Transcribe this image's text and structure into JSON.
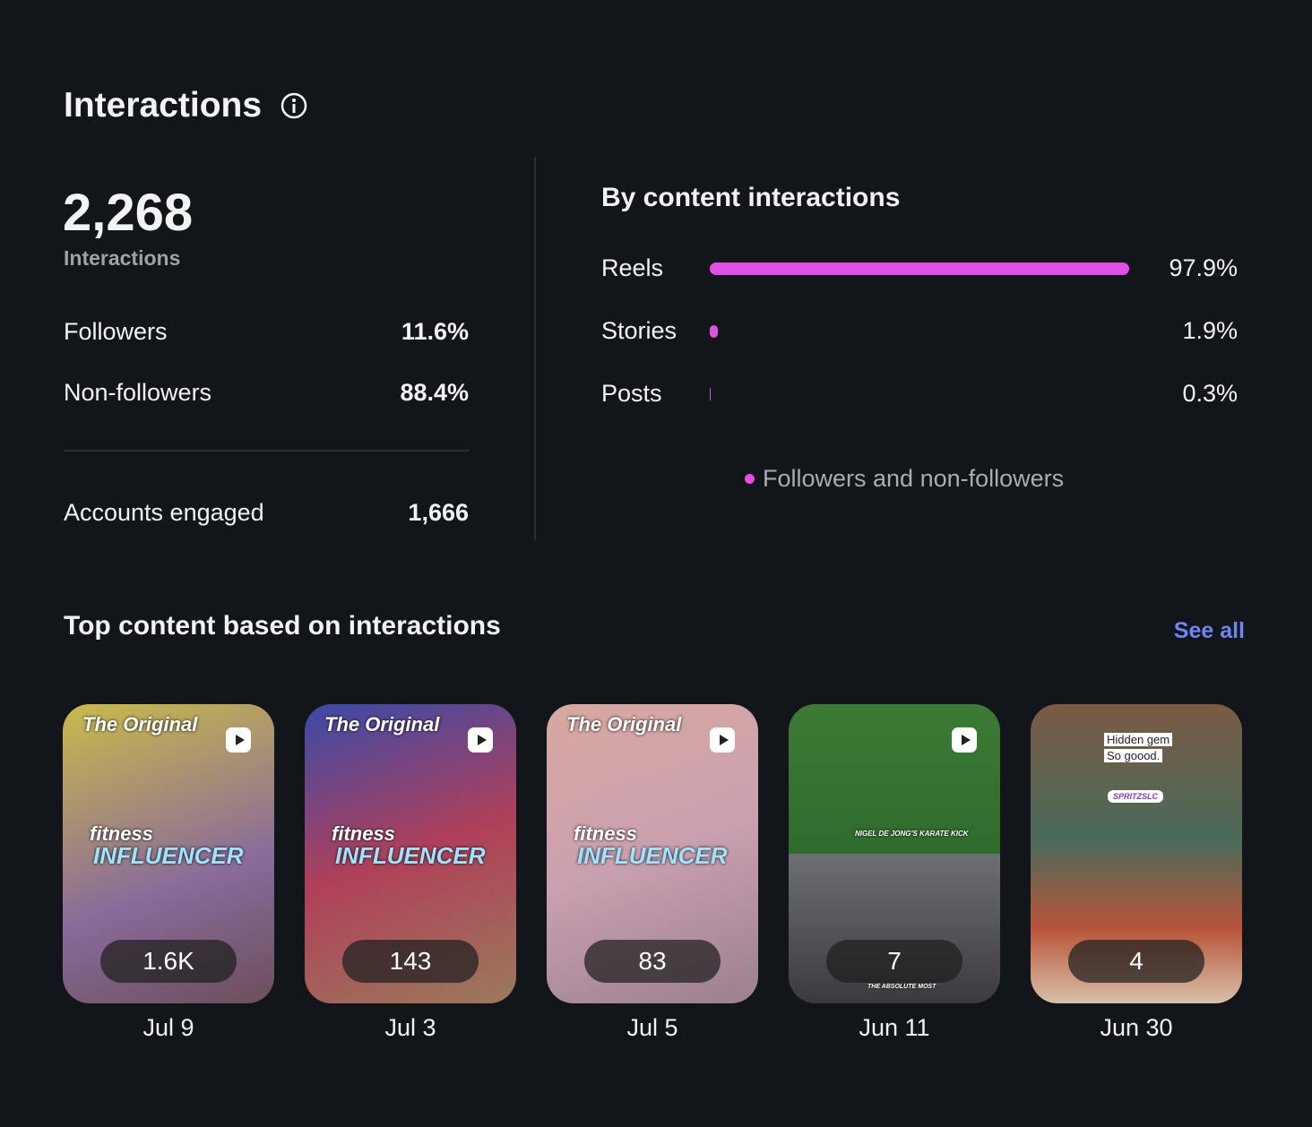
{
  "header": {
    "title": "Interactions"
  },
  "summary": {
    "total": "2,268",
    "total_label": "Interactions",
    "rows": [
      [
        "Followers",
        "11.6%"
      ],
      [
        "Non-followers",
        "88.4%"
      ]
    ],
    "accounts": [
      "Accounts engaged",
      "1,666"
    ]
  },
  "by_content": {
    "type": "bar",
    "title": "By content interactions",
    "categories": [
      "Reels",
      "Stories",
      "Posts"
    ],
    "values": [
      97.9,
      1.9,
      0.3
    ],
    "value_labels": [
      "97.9%",
      "1.9%",
      "0.3%"
    ],
    "color": "#e14fe6",
    "legend": "Followers and non-followers"
  },
  "top_content": {
    "title": "Top content based on interactions",
    "link": "See all",
    "items": [
      {
        "count": "1.6K",
        "date": "Jul 9",
        "texts": [
          "The Original",
          "fitness",
          "INFLUENCER"
        ]
      },
      {
        "count": "143",
        "date": "Jul 3",
        "texts": [
          "The Original",
          "fitness",
          "INFLUENCER"
        ]
      },
      {
        "count": "83",
        "date": "Jul 5",
        "texts": [
          "The Original",
          "fitness",
          "INFLUENCER"
        ]
      },
      {
        "count": "7",
        "date": "Jun 11",
        "texts": [
          "NIGEL DE JONG'S KARATE KICK",
          "THE ABSOLUTE MOST"
        ]
      },
      {
        "count": "4",
        "date": "Jun 30",
        "texts": [
          "Hidden gem",
          "So goood.",
          "SPRITZSLC"
        ]
      }
    ]
  }
}
